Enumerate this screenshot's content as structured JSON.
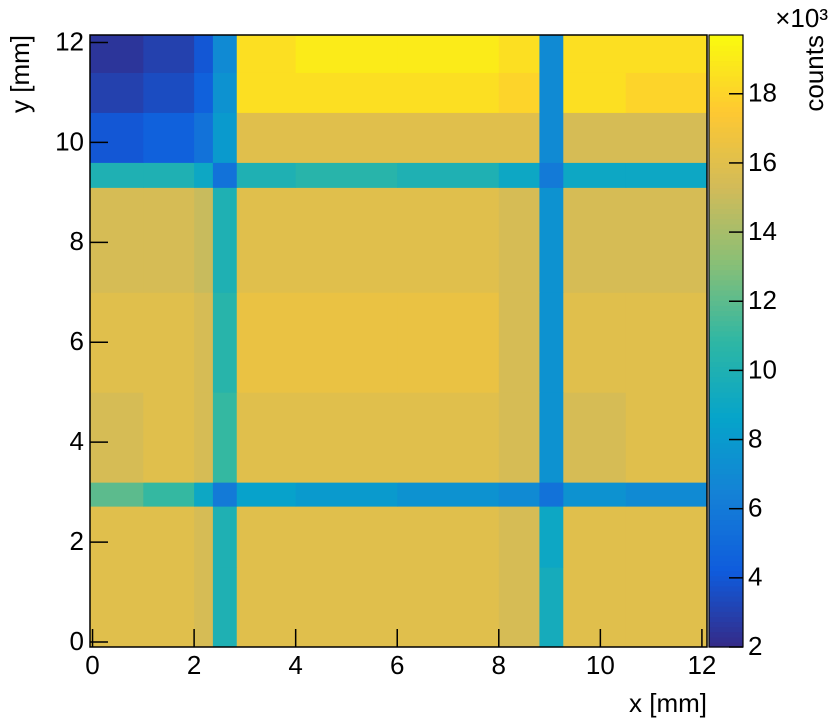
{
  "chart_data": {
    "type": "heatmap",
    "x_label": "x [mm]",
    "y_label": "y [mm]",
    "z_label": "counts",
    "z_multiplier_label": "×10³",
    "xbins": [
      -0.05,
      1,
      2,
      2.37,
      2.84,
      4,
      6,
      8,
      8.8,
      9.27,
      10.5,
      12.1
    ],
    "ybins": [
      -0.1,
      1.5,
      2.72,
      3.2,
      5,
      7,
      9.1,
      9.6,
      10.6,
      11.4,
      12.15
    ],
    "values": [
      [
        16,
        16,
        15.5,
        10,
        16,
        16,
        16,
        15.5,
        9.5,
        16,
        16
      ],
      [
        16,
        16,
        15.5,
        10,
        16,
        16,
        16,
        15.5,
        9,
        16,
        16
      ],
      [
        12,
        11,
        9,
        6,
        8.5,
        8,
        7.5,
        7,
        5.5,
        7.5,
        7
      ],
      [
        15.5,
        16,
        15.5,
        11,
        16,
        16,
        16,
        15.5,
        7.5,
        15.5,
        16
      ],
      [
        16,
        16,
        15.5,
        10.5,
        16.5,
        16.5,
        16.5,
        15.5,
        7.5,
        16,
        16
      ],
      [
        15.5,
        15.5,
        15,
        10,
        16,
        16,
        16,
        15.5,
        7.5,
        15.5,
        15.5
      ],
      [
        10,
        10,
        9,
        5.5,
        10,
        10.5,
        10,
        9,
        6,
        9,
        9
      ],
      [
        4,
        4.5,
        5.5,
        8,
        16,
        16,
        16,
        16,
        7,
        15.5,
        15.5
      ],
      [
        3,
        3.5,
        4.5,
        7.5,
        18.5,
        18.5,
        18.5,
        18,
        7,
        18.5,
        18
      ],
      [
        2.5,
        3,
        4,
        7,
        18.5,
        19,
        19,
        18.5,
        7,
        18.5,
        18.5
      ]
    ],
    "xlim": [
      -0.05,
      12.1
    ],
    "ylim": [
      -0.1,
      12.15
    ],
    "zlim": [
      2,
      19.7
    ],
    "xticks": [
      0,
      2,
      4,
      6,
      8,
      10,
      12
    ],
    "yticks": [
      0,
      2,
      4,
      6,
      8,
      10,
      12
    ],
    "zticks": [
      2,
      4,
      6,
      8,
      10,
      12,
      14,
      16,
      18
    ],
    "colormap": [
      "#352a87",
      "#0f5cdd",
      "#1481d6",
      "#06a4ca",
      "#2eb7a4",
      "#87bf77",
      "#d1bb59",
      "#fec832",
      "#f9fb0e"
    ]
  }
}
